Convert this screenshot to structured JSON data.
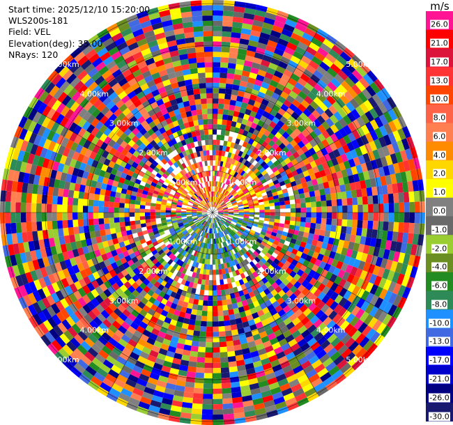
{
  "info": {
    "start_time": "Start time: 2025/12/10 15:20:00",
    "instrument": "WLS200s-181",
    "field": "Field: VEL",
    "elevation": "Elevation(deg): 35.00",
    "nrays": "NRays: 120"
  },
  "colorbar": {
    "unit": "m/s",
    "ticks": [
      "26.0",
      "21.0",
      "17.0",
      "13.0",
      "10.0",
      "8.0",
      "6.0",
      "4.0",
      "2.0",
      "1.0",
      "0.0",
      "-1.0",
      "-2.0",
      "-4.0",
      "-6.0",
      "-8.0",
      "-10.0",
      "-13.0",
      "-17.0",
      "-21.0",
      "-26.0",
      "-30.0"
    ],
    "colors": [
      "#ff1493",
      "#ff0000",
      "#dc143c",
      "#ff3333",
      "#ff4500",
      "#ff6347",
      "#ff7f50",
      "#ff8c00",
      "#ffd700",
      "#ffff00",
      "#808080",
      "#696969",
      "#9acd32",
      "#6b8e23",
      "#228b22",
      "#2e8b57",
      "#1e90ff",
      "#4169e1",
      "#0000ff",
      "#0000cd",
      "#000080",
      "#191970"
    ]
  },
  "chart_data": {
    "type": "heatmap",
    "projection": "polar PPI",
    "field": "VEL",
    "units": "m/s",
    "value_range": [
      -30,
      26
    ],
    "nrays": 120,
    "range_labels": [
      "1.00km",
      "2.00km",
      "3.00km",
      "4.00km",
      "5.00km"
    ],
    "range_rings_km": [
      1,
      2,
      3,
      4,
      5
    ],
    "grid_spokes_deg": 30
  }
}
